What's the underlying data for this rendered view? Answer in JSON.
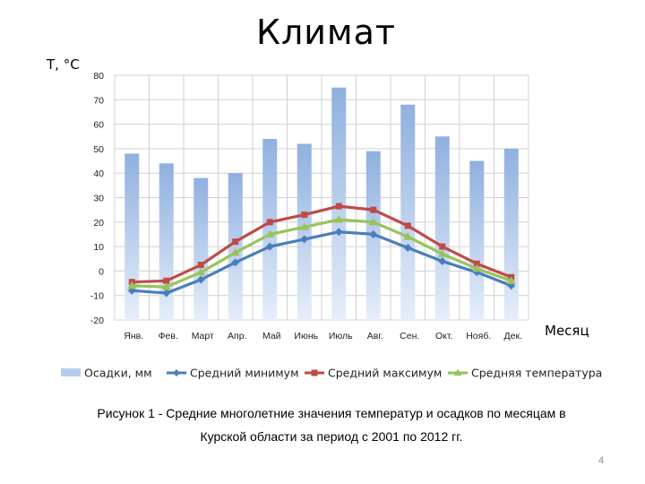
{
  "slide": {
    "title": "Климат",
    "caption_line1": "Рисунок 1 - Средние многолетние значения температур и осадков по месяцам в",
    "caption_line2": "Курской области за период с 2001 по 2012 гг.",
    "page_number": "4"
  },
  "chart_data": {
    "type": "bar",
    "title": "",
    "ylabel": "Т, °С",
    "xlabel": "Месяц",
    "ylim": [
      -20,
      80
    ],
    "yticks": [
      -20,
      -10,
      0,
      10,
      20,
      30,
      40,
      50,
      60,
      70,
      80
    ],
    "grid": true,
    "legend_position": "bottom",
    "categories": [
      "Янв.",
      "Фев.",
      "Март",
      "Апр.",
      "Май",
      "Июнь",
      "Июль",
      "Авг.",
      "Сен.",
      "Окт.",
      "Нояб.",
      "Дек."
    ],
    "series": [
      {
        "name": "Осадки, мм",
        "type": "bar",
        "color": "#9db8e2",
        "values": [
          48,
          44,
          38,
          40,
          54,
          52,
          75,
          49,
          68,
          55,
          45,
          50
        ]
      },
      {
        "name": "Средний минимум",
        "type": "line",
        "color": "#4a7ebb",
        "values": [
          -8,
          -9,
          -3.5,
          3.5,
          10,
          13,
          16,
          15,
          9.5,
          4,
          -0.5,
          -6
        ]
      },
      {
        "name": "Средний максимум",
        "type": "line",
        "color": "#be4b48",
        "values": [
          -4.5,
          -4,
          2.5,
          12,
          20,
          23,
          26.5,
          25,
          18.5,
          10,
          3,
          -2.5
        ]
      },
      {
        "name": "Средняя температура",
        "type": "line",
        "color": "#98c35a",
        "values": [
          -6,
          -6.5,
          -0.5,
          7.5,
          15,
          18,
          21,
          20,
          14,
          7,
          1,
          -4
        ]
      }
    ]
  }
}
